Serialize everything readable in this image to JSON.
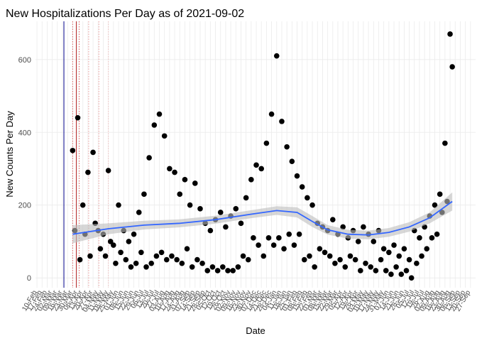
{
  "chart_data": {
    "type": "scatter",
    "title": "New Hospitalizations Per Day as of 2021-09-02",
    "x_label": "Date",
    "y_label": "New Counts Per Day",
    "color": "#000000",
    "x": [
      "2020-03-30",
      "2020-04-02",
      "2020-04-06",
      "2020-04-09",
      "2020-04-13",
      "2020-04-16",
      "2020-04-20",
      "2020-04-23",
      "2020-04-27",
      "2020-04-30",
      "2020-05-04",
      "2020-05-07",
      "2020-05-11",
      "2020-05-14",
      "2020-05-18",
      "2020-05-21",
      "2020-05-25",
      "2020-05-28",
      "2020-06-01",
      "2020-06-04",
      "2020-06-08",
      "2020-06-11",
      "2020-06-15",
      "2020-06-18",
      "2020-06-22",
      "2020-06-25",
      "2020-06-29",
      "2020-07-02",
      "2020-07-06",
      "2020-07-09",
      "2020-07-13",
      "2020-07-16",
      "2020-07-20",
      "2020-07-23",
      "2020-07-27",
      "2020-07-30",
      "2020-08-03",
      "2020-08-06",
      "2020-08-10",
      "2020-08-13",
      "2020-08-17",
      "2020-08-20",
      "2020-08-24",
      "2020-08-27",
      "2020-08-31",
      "2020-09-03",
      "2020-09-07",
      "2020-09-10",
      "2020-09-14",
      "2020-09-17",
      "2020-09-21",
      "2020-09-24",
      "2020-09-28",
      "2020-10-01",
      "2020-10-05",
      "2020-10-08",
      "2020-10-12",
      "2020-10-15",
      "2020-10-19",
      "2020-10-22",
      "2020-10-26",
      "2020-10-29",
      "2020-11-02",
      "2020-11-05",
      "2020-11-09",
      "2020-11-12",
      "2020-11-16",
      "2020-11-19",
      "2020-11-23",
      "2020-11-26",
      "2020-11-30",
      "2020-12-03",
      "2020-12-07",
      "2020-12-10",
      "2020-12-14",
      "2020-12-17",
      "2020-12-21",
      "2020-12-24",
      "2020-12-28",
      "2020-12-31",
      "2021-01-04",
      "2021-01-07",
      "2021-01-11",
      "2021-01-14",
      "2021-01-18",
      "2021-01-21",
      "2021-01-25",
      "2021-01-28",
      "2021-02-01",
      "2021-02-04",
      "2021-02-08",
      "2021-02-11",
      "2021-02-15",
      "2021-02-18",
      "2021-02-22",
      "2021-02-25",
      "2021-03-01",
      "2021-03-04",
      "2021-03-08",
      "2021-03-11",
      "2021-03-15",
      "2021-03-18",
      "2021-03-22",
      "2021-03-25",
      "2021-03-29",
      "2021-04-01",
      "2021-04-05",
      "2021-04-08",
      "2021-04-12",
      "2021-04-15",
      "2021-04-19",
      "2021-04-22",
      "2021-04-26",
      "2021-04-29",
      "2021-05-03",
      "2021-05-06",
      "2021-05-10",
      "2021-05-13",
      "2021-05-17",
      "2021-05-20",
      "2021-05-24",
      "2021-05-27",
      "2021-05-31",
      "2021-06-03",
      "2021-06-07",
      "2021-06-10",
      "2021-06-14",
      "2021-06-17",
      "2021-06-21",
      "2021-06-24",
      "2021-06-28",
      "2021-07-01",
      "2021-07-05",
      "2021-07-08",
      "2021-07-12",
      "2021-07-15",
      "2021-07-19",
      "2021-07-22",
      "2021-07-26",
      "2021-07-29",
      "2021-08-02",
      "2021-08-05",
      "2021-08-09",
      "2021-08-12",
      "2021-08-16",
      "2021-08-19",
      "2021-08-23",
      "2021-08-26",
      "2021-08-30",
      "2021-09-02"
    ],
    "values": [
      350,
      130,
      440,
      50,
      200,
      120,
      290,
      60,
      345,
      150,
      130,
      80,
      120,
      60,
      295,
      100,
      90,
      40,
      200,
      70,
      130,
      50,
      100,
      30,
      120,
      40,
      180,
      70,
      230,
      30,
      330,
      40,
      420,
      60,
      450,
      70,
      390,
      50,
      300,
      60,
      290,
      50,
      230,
      40,
      270,
      80,
      200,
      30,
      260,
      50,
      190,
      40,
      150,
      20,
      130,
      30,
      160,
      20,
      180,
      30,
      140,
      20,
      170,
      20,
      190,
      30,
      150,
      60,
      220,
      50,
      270,
      110,
      310,
      90,
      300,
      60,
      370,
      110,
      450,
      90,
      610,
      110,
      430,
      80,
      360,
      120,
      320,
      90,
      280,
      120,
      250,
      50,
      220,
      60,
      200,
      30,
      150,
      80,
      140,
      70,
      130,
      60,
      160,
      40,
      120,
      50,
      140,
      30,
      110,
      60,
      130,
      50,
      100,
      20,
      140,
      40,
      120,
      30,
      100,
      20,
      130,
      50,
      80,
      20,
      70,
      10,
      90,
      30,
      60,
      10,
      80,
      20,
      50,
      0,
      130,
      40,
      110,
      60,
      140,
      80,
      170,
      110,
      200,
      120,
      230,
      180,
      370,
      210,
      670,
      580
    ],
    "trend": {
      "color": "#3366ff",
      "band_color": "#bdbdbd",
      "x": [
        "2020-03-30",
        "2020-05-18",
        "2020-07-06",
        "2020-08-24",
        "2020-10-12",
        "2020-11-30",
        "2021-01-04",
        "2021-02-01",
        "2021-02-22",
        "2021-03-15",
        "2021-04-12",
        "2021-05-10",
        "2021-06-07",
        "2021-07-05",
        "2021-08-02",
        "2021-09-02"
      ],
      "values": [
        120,
        135,
        145,
        150,
        160,
        175,
        185,
        180,
        155,
        132,
        120,
        118,
        125,
        140,
        165,
        210
      ],
      "lower": [
        95,
        120,
        133,
        139,
        149,
        164,
        173,
        166,
        140,
        119,
        108,
        106,
        113,
        127,
        150,
        185
      ],
      "upper": [
        145,
        150,
        157,
        161,
        171,
        186,
        197,
        194,
        170,
        145,
        132,
        130,
        137,
        153,
        180,
        235
      ]
    },
    "vlines": [
      {
        "x": "2020-03-18",
        "color": "#00008b",
        "dashed": false
      },
      {
        "x": "2020-04-04",
        "color": "#b22222",
        "dashed": false
      },
      {
        "x": "2020-03-30",
        "color": "#e06060",
        "dashed": true
      },
      {
        "x": "2020-04-08",
        "color": "#e06060",
        "dashed": true
      },
      {
        "x": "2020-04-21",
        "color": "#f0a0a0",
        "dashed": true
      },
      {
        "x": "2020-05-05",
        "color": "#f0a0a0",
        "dashed": true
      },
      {
        "x": "2020-05-18",
        "color": "#f0c0c0",
        "dashed": true
      }
    ],
    "xlim": [
      "2020-02-08",
      "2021-10-04"
    ],
    "ylim": [
      -27,
      705
    ],
    "yticks": [
      0,
      200,
      400,
      600
    ],
    "grid": true,
    "xticks": [
      {
        "value": "2020-02-10",
        "label": "10-Feb"
      },
      {
        "value": "2020-02-17",
        "label": "17-Feb"
      },
      {
        "value": "2020-02-24",
        "label": "24-Feb"
      },
      {
        "value": "2020-03-02",
        "label": "02-Mar"
      },
      {
        "value": "2020-03-09",
        "label": "09-Mar"
      },
      {
        "value": "2020-03-16",
        "label": "16-Mar"
      },
      {
        "value": "2020-03-23",
        "label": "23-Mar"
      },
      {
        "value": "2020-03-30",
        "label": "30-Mar"
      },
      {
        "value": "2020-04-06",
        "label": "06-Apr"
      },
      {
        "value": "2020-04-13",
        "label": "13-Apr"
      },
      {
        "value": "2020-04-20",
        "label": "20-Apr"
      },
      {
        "value": "2020-04-27",
        "label": "27-Apr"
      },
      {
        "value": "2020-05-04",
        "label": "04-May"
      },
      {
        "value": "2020-05-11",
        "label": "11-May"
      },
      {
        "value": "2020-05-18",
        "label": "18-May"
      },
      {
        "value": "2020-05-25",
        "label": "25-May"
      },
      {
        "value": "2020-06-01",
        "label": "01-Jun"
      },
      {
        "value": "2020-06-08",
        "label": "08-Jun"
      },
      {
        "value": "2020-06-15",
        "label": "15-Jun"
      },
      {
        "value": "2020-06-22",
        "label": "22-Jun"
      },
      {
        "value": "2020-06-29",
        "label": "29-Jun"
      },
      {
        "value": "2020-07-06",
        "label": "06-Jul"
      },
      {
        "value": "2020-07-13",
        "label": "13-Jul"
      },
      {
        "value": "2020-07-20",
        "label": "20-Jul"
      },
      {
        "value": "2020-07-27",
        "label": "27-Jul"
      },
      {
        "value": "2020-08-03",
        "label": "03-Aug"
      },
      {
        "value": "2020-08-10",
        "label": "10-Aug"
      },
      {
        "value": "2020-08-17",
        "label": "17-Aug"
      },
      {
        "value": "2020-08-24",
        "label": "24-Aug"
      },
      {
        "value": "2020-08-31",
        "label": "31-Aug"
      },
      {
        "value": "2020-09-07",
        "label": "07-Sep"
      },
      {
        "value": "2020-09-14",
        "label": "14-Sep"
      },
      {
        "value": "2020-09-21",
        "label": "21-Sep"
      },
      {
        "value": "2020-09-28",
        "label": "28-Sep"
      },
      {
        "value": "2020-10-05",
        "label": "05-Oct"
      },
      {
        "value": "2020-10-12",
        "label": "12-Oct"
      },
      {
        "value": "2020-10-19",
        "label": "19-Oct"
      },
      {
        "value": "2020-10-26",
        "label": "26-Oct"
      },
      {
        "value": "2020-11-02",
        "label": "02-Nov"
      },
      {
        "value": "2020-11-09",
        "label": "09-Nov"
      },
      {
        "value": "2020-11-16",
        "label": "16-Nov"
      },
      {
        "value": "2020-11-23",
        "label": "23-Nov"
      },
      {
        "value": "2020-11-30",
        "label": "30-Nov"
      },
      {
        "value": "2020-12-07",
        "label": "07-Dec"
      },
      {
        "value": "2020-12-14",
        "label": "14-Dec"
      },
      {
        "value": "2020-12-21",
        "label": "21-Dec"
      },
      {
        "value": "2020-12-28",
        "label": "28-Dec"
      },
      {
        "value": "2021-01-04",
        "label": "04-Jan"
      },
      {
        "value": "2021-01-11",
        "label": "11-Jan"
      },
      {
        "value": "2021-01-18",
        "label": "18-Jan"
      },
      {
        "value": "2021-01-25",
        "label": "25-Jan"
      },
      {
        "value": "2021-02-01",
        "label": "01-Feb"
      },
      {
        "value": "2021-02-08",
        "label": "08-Feb"
      },
      {
        "value": "2021-02-15",
        "label": "15-Feb"
      },
      {
        "value": "2021-02-22",
        "label": "22-Feb"
      },
      {
        "value": "2021-03-01",
        "label": "01-Mar"
      },
      {
        "value": "2021-03-08",
        "label": "08-Mar"
      },
      {
        "value": "2021-03-15",
        "label": "15-Mar"
      },
      {
        "value": "2021-03-22",
        "label": "22-Mar"
      },
      {
        "value": "2021-03-29",
        "label": "29-Mar"
      },
      {
        "value": "2021-04-05",
        "label": "05-Apr"
      },
      {
        "value": "2021-04-12",
        "label": "12-Apr"
      },
      {
        "value": "2021-04-19",
        "label": "19-Apr"
      },
      {
        "value": "2021-04-26",
        "label": "26-Apr"
      },
      {
        "value": "2021-05-03",
        "label": "03-May"
      },
      {
        "value": "2021-05-10",
        "label": "10-May"
      },
      {
        "value": "2021-05-17",
        "label": "17-May"
      },
      {
        "value": "2021-05-24",
        "label": "24-May"
      },
      {
        "value": "2021-05-31",
        "label": "31-May"
      },
      {
        "value": "2021-06-07",
        "label": "07-Jun"
      },
      {
        "value": "2021-06-14",
        "label": "14-Jun"
      },
      {
        "value": "2021-06-21",
        "label": "21-Jun"
      },
      {
        "value": "2021-06-28",
        "label": "28-Jun"
      },
      {
        "value": "2021-07-05",
        "label": "05-Jul"
      },
      {
        "value": "2021-07-12",
        "label": "12-Jul"
      },
      {
        "value": "2021-07-19",
        "label": "19-Jul"
      },
      {
        "value": "2021-07-26",
        "label": "26-Jul"
      },
      {
        "value": "2021-08-02",
        "label": "02-Aug"
      },
      {
        "value": "2021-08-09",
        "label": "09-Aug"
      },
      {
        "value": "2021-08-16",
        "label": "16-Aug"
      },
      {
        "value": "2021-08-23",
        "label": "23-Aug"
      },
      {
        "value": "2021-08-30",
        "label": "30-Aug"
      },
      {
        "value": "2021-09-06",
        "label": "06-Sep"
      },
      {
        "value": "2021-09-13",
        "label": "13-Sep"
      },
      {
        "value": "2021-09-20",
        "label": "20-Sep"
      },
      {
        "value": "2021-09-27",
        "label": "27-Sep"
      }
    ]
  }
}
